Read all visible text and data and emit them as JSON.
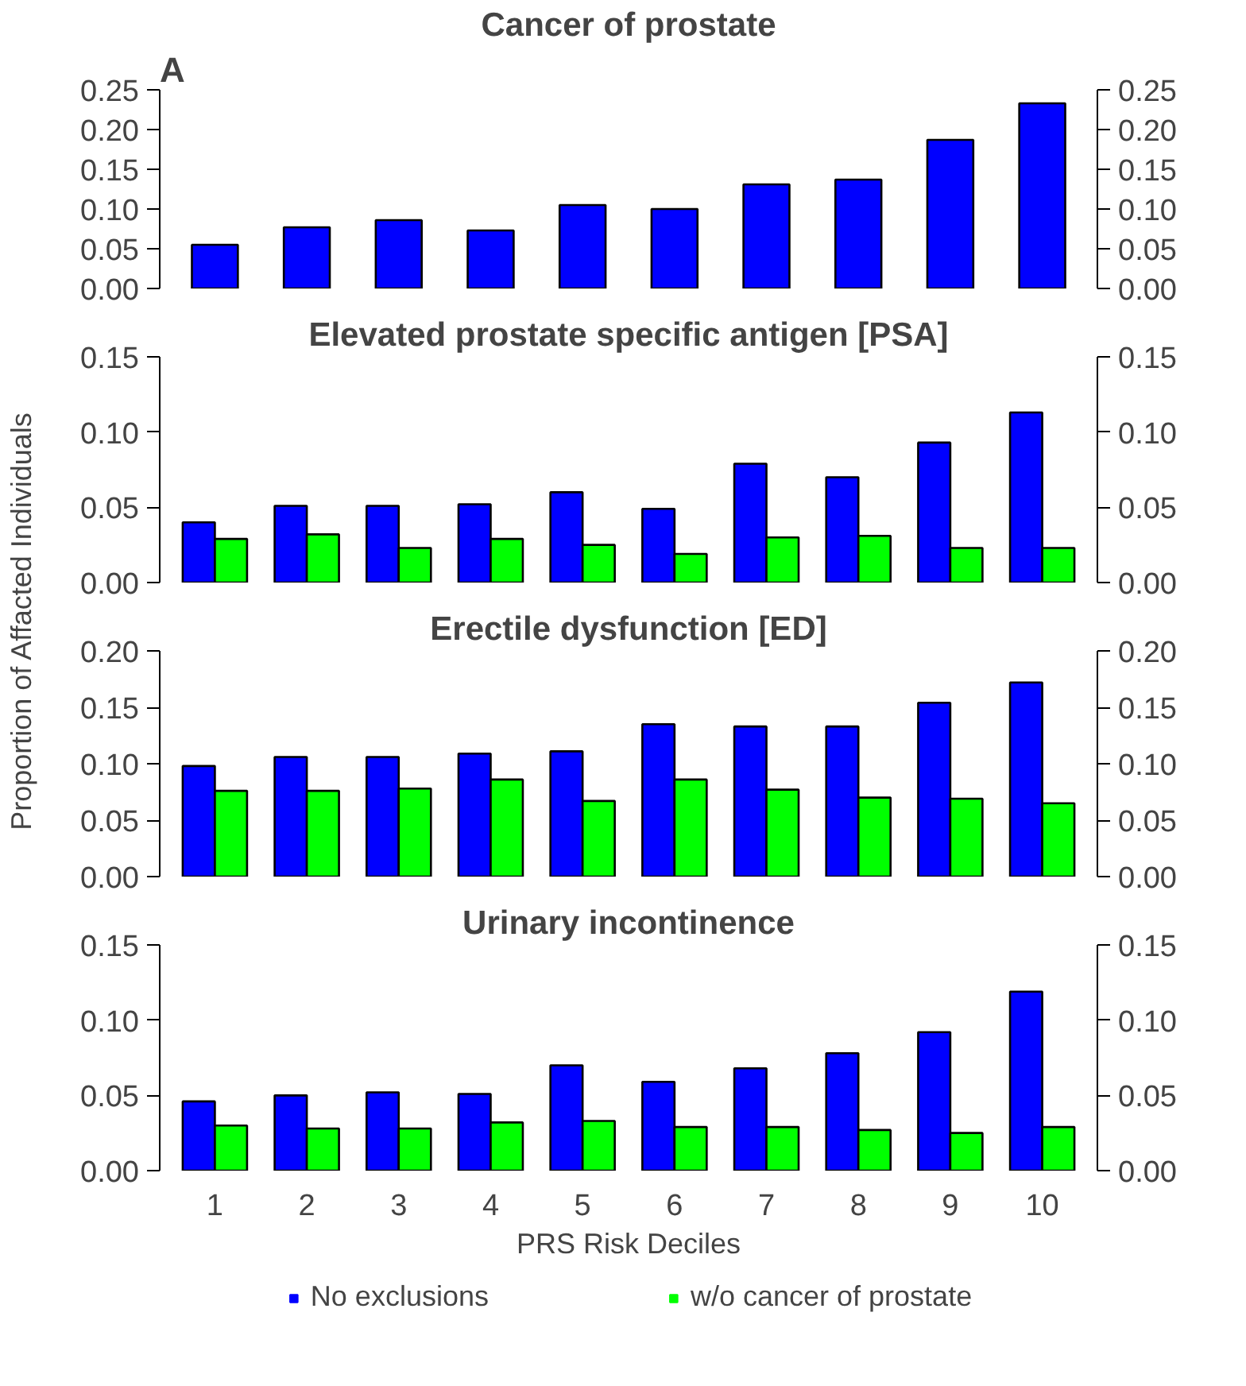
{
  "chart_data": [
    {
      "type": "bar",
      "title": "Cancer of prostate",
      "annotations": [
        "A"
      ],
      "categories": [
        "1",
        "2",
        "3",
        "4",
        "5",
        "6",
        "7",
        "8",
        "9",
        "10"
      ],
      "tick_labels": "y",
      "series": [
        {
          "color": "#0000ff",
          "values": [
            0.055,
            0.077,
            0.086,
            0.073,
            0.105,
            0.1,
            0.131,
            0.137,
            0.187,
            0.233
          ]
        }
      ],
      "ylim": [
        0,
        0.25
      ],
      "yticks": [
        {
          "value": 0,
          "label": "0.00"
        },
        {
          "value": 0.05,
          "label": "0.05"
        },
        {
          "value": 0.1,
          "label": "0.10"
        },
        {
          "value": 0.15,
          "label": "0.15"
        },
        {
          "value": 0.2,
          "label": "0.20"
        },
        {
          "value": 0.25,
          "label": "0.25"
        }
      ],
      "y2lim": [
        0,
        0.25
      ],
      "y2ticks": [
        {
          "value": 0,
          "label": "0.00"
        },
        {
          "value": 0.05,
          "label": "0.05"
        },
        {
          "value": 0.1,
          "label": "0.10"
        },
        {
          "value": 0.15,
          "label": "0.15"
        },
        {
          "value": 0.2,
          "label": "0.20"
        },
        {
          "value": 0.25,
          "label": "0.25"
        }
      ],
      "grid": false
    },
    {
      "type": "bar",
      "title": "Elevated prostate specific antigen [PSA]",
      "ylabel": "Proportion of Affacted Individuals",
      "categories": [
        "1",
        "2",
        "3",
        "4",
        "5",
        "6",
        "7",
        "8",
        "9",
        "10"
      ],
      "tick_labels": "y",
      "series": [
        {
          "color": "#0000ff",
          "values": [
            0.04,
            0.051,
            0.051,
            0.052,
            0.06,
            0.049,
            0.079,
            0.07,
            0.093,
            0.113
          ]
        },
        {
          "color": "#00ff00",
          "values": [
            0.029,
            0.032,
            0.023,
            0.029,
            0.025,
            0.019,
            0.03,
            0.031,
            0.023,
            0.023
          ]
        }
      ],
      "ylim": [
        0,
        0.15
      ],
      "yticks": [
        {
          "value": 0,
          "label": "0.00"
        },
        {
          "value": 0.05,
          "label": "0.05"
        },
        {
          "value": 0.1,
          "label": "0.10"
        },
        {
          "value": 0.15,
          "label": "0.15"
        }
      ],
      "y2lim": [
        0,
        0.15
      ],
      "y2ticks": [
        {
          "value": 0,
          "label": "0.00"
        },
        {
          "value": 0.05,
          "label": "0.05"
        },
        {
          "value": 0.1,
          "label": "0.10"
        },
        {
          "value": 0.15,
          "label": "0.15"
        }
      ],
      "grid": false
    },
    {
      "type": "bar",
      "title": "Erectile dysfunction [ED]",
      "categories": [
        "1",
        "2",
        "3",
        "4",
        "5",
        "6",
        "7",
        "8",
        "9",
        "10"
      ],
      "tick_labels": "y",
      "series": [
        {
          "color": "#0000ff",
          "values": [
            0.098,
            0.106,
            0.106,
            0.109,
            0.111,
            0.135,
            0.133,
            0.133,
            0.154,
            0.172
          ]
        },
        {
          "color": "#00ff00",
          "values": [
            0.076,
            0.076,
            0.078,
            0.086,
            0.067,
            0.086,
            0.077,
            0.07,
            0.069,
            0.065
          ]
        }
      ],
      "ylim": [
        0,
        0.2
      ],
      "yticks": [
        {
          "value": 0,
          "label": "0.00"
        },
        {
          "value": 0.05,
          "label": "0.05"
        },
        {
          "value": 0.1,
          "label": "0.10"
        },
        {
          "value": 0.15,
          "label": "0.15"
        },
        {
          "value": 0.2,
          "label": "0.20"
        }
      ],
      "y2lim": [
        0,
        0.2
      ],
      "y2ticks": [
        {
          "value": 0,
          "label": "0.00"
        },
        {
          "value": 0.05,
          "label": "0.05"
        },
        {
          "value": 0.1,
          "label": "0.10"
        },
        {
          "value": 0.15,
          "label": "0.15"
        },
        {
          "value": 0.2,
          "label": "0.20"
        }
      ],
      "grid": false
    },
    {
      "type": "bar",
      "title": "Urinary incontinence",
      "xlabel": "PRS Risk Deciles",
      "categories": [
        "1",
        "2",
        "3",
        "4",
        "5",
        "6",
        "7",
        "8",
        "9",
        "10"
      ],
      "legend": "bottom",
      "series": [
        {
          "name": "No exclusions",
          "color": "#0000ff",
          "values": [
            0.046,
            0.05,
            0.052,
            0.051,
            0.07,
            0.059,
            0.068,
            0.078,
            0.092,
            0.119
          ]
        },
        {
          "name": "w/o cancer of prostate",
          "color": "#00ff00",
          "values": [
            0.03,
            0.028,
            0.028,
            0.032,
            0.033,
            0.029,
            0.029,
            0.027,
            0.025,
            0.029
          ]
        }
      ],
      "ylim": [
        0,
        0.15
      ],
      "yticks": [
        {
          "value": 0,
          "label": "0.00"
        },
        {
          "value": 0.05,
          "label": "0.05"
        },
        {
          "value": 0.1,
          "label": "0.10"
        },
        {
          "value": 0.15,
          "label": "0.15"
        }
      ],
      "y2lim": [
        0,
        0.15
      ],
      "y2ticks": [
        {
          "value": 0,
          "label": "0.00"
        },
        {
          "value": 0.05,
          "label": "0.05"
        },
        {
          "value": 0.1,
          "label": "0.10"
        },
        {
          "value": 0.15,
          "label": "0.15"
        }
      ],
      "grid": false
    }
  ]
}
